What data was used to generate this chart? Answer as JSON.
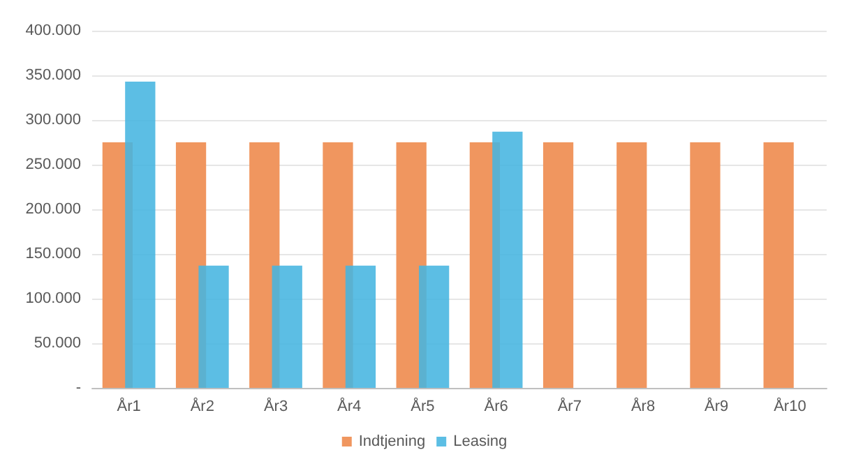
{
  "chart_data": {
    "type": "bar",
    "categories": [
      "År1",
      "År2",
      "År3",
      "År4",
      "År5",
      "År6",
      "År7",
      "År8",
      "År9",
      "År10"
    ],
    "series": [
      {
        "name": "Indtjening",
        "color": "#f0965f",
        "values": [
          275000,
          275000,
          275000,
          275000,
          275000,
          275000,
          275000,
          275000,
          275000,
          275000
        ]
      },
      {
        "name": "Leasing",
        "color": "#45b5e0",
        "values": [
          343000,
          137000,
          137000,
          137000,
          137000,
          287000,
          null,
          null,
          null,
          null
        ]
      }
    ],
    "ylim": [
      0,
      400000
    ],
    "yticks": [
      {
        "value": 0,
        "label": "-"
      },
      {
        "value": 50000,
        "label": "50.000"
      },
      {
        "value": 100000,
        "label": "100.000"
      },
      {
        "value": 150000,
        "label": "150.000"
      },
      {
        "value": 200000,
        "label": "200.000"
      },
      {
        "value": 250000,
        "label": "250.000"
      },
      {
        "value": 300000,
        "label": "300.000"
      },
      {
        "value": 350000,
        "label": "350.000"
      },
      {
        "value": 400000,
        "label": "400.000"
      }
    ],
    "grid": "y",
    "legend": "bottom"
  }
}
